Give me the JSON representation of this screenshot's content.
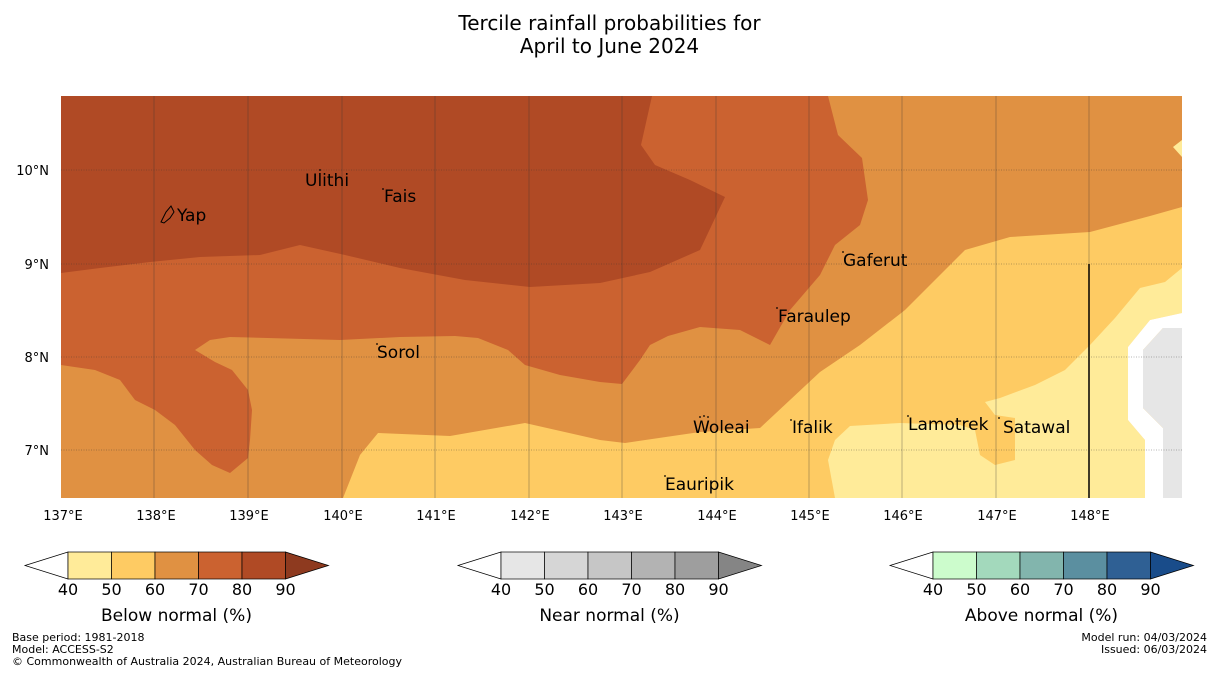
{
  "title": {
    "line1": "Tercile rainfall probabilities for",
    "line2": "April to June 2024"
  },
  "map": {
    "lon_ticks": [
      "137°E",
      "138°E",
      "139°E",
      "140°E",
      "141°E",
      "142°E",
      "143°E",
      "144°E",
      "145°E",
      "146°E",
      "147°E",
      "148°E"
    ],
    "lat_ticks": [
      "10°N",
      "9°N",
      "8°N",
      "7°N"
    ],
    "places": [
      {
        "name": "Ulithi"
      },
      {
        "name": "Fais"
      },
      {
        "name": "Yap"
      },
      {
        "name": "Gaferut"
      },
      {
        "name": "Faraulep"
      },
      {
        "name": "Sorol"
      },
      {
        "name": "Woleai"
      },
      {
        "name": "Ifalik"
      },
      {
        "name": "Lamotrek"
      },
      {
        "name": "Satawal"
      },
      {
        "name": "Eauripik"
      }
    ],
    "colors": {
      "below_40_50": "#ffeb99",
      "below_50_60": "#fecb63",
      "below_60_70": "#e09142",
      "below_70_80": "#cb6230",
      "below_80_90": "#b04a25",
      "below_90": "#8e3a1f",
      "near_40_50": "#e6e6e6"
    }
  },
  "colorbars": [
    {
      "name": "below",
      "label": "Below normal (%)",
      "ticks": [
        "40",
        "50",
        "60",
        "70",
        "80",
        "90"
      ],
      "colors": [
        "#ffffff",
        "#ffeb99",
        "#fecb63",
        "#e09142",
        "#cb6230",
        "#b04a25",
        "#8e3a1f"
      ]
    },
    {
      "name": "near",
      "label": "Near normal (%)",
      "ticks": [
        "40",
        "50",
        "60",
        "70",
        "80",
        "90"
      ],
      "colors": [
        "#ffffff",
        "#e6e6e6",
        "#d6d6d6",
        "#c6c6c6",
        "#b3b3b3",
        "#9e9e9e",
        "#858585"
      ]
    },
    {
      "name": "above",
      "label": "Above normal (%)",
      "ticks": [
        "40",
        "50",
        "60",
        "70",
        "80",
        "90"
      ],
      "colors": [
        "#ffffff",
        "#ccfccc",
        "#a3d9bc",
        "#82b5ad",
        "#5b8fa0",
        "#2f6094",
        "#194c8a"
      ]
    }
  ],
  "footer": {
    "base_period": "Base period: 1981-2018",
    "model": "Model: ACCESS-S2",
    "copyright": "© Commonwealth of Australia 2024, Australian Bureau of Meteorology",
    "model_run": "Model run: 04/03/2024",
    "issued": "Issued: 06/03/2024"
  }
}
